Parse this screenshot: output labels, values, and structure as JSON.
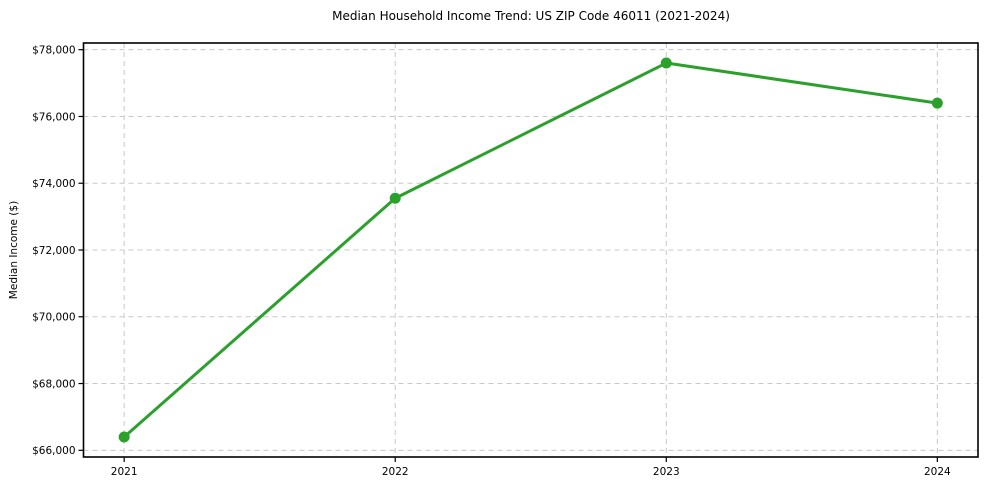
{
  "chart_data": {
    "type": "line",
    "title": "Median Household Income Trend: US ZIP Code 46011 (2021-2024)",
    "xlabel": "",
    "ylabel": "Median Income ($)",
    "x": [
      2021,
      2022,
      2023,
      2024
    ],
    "categories": [
      "2021",
      "2022",
      "2023",
      "2024"
    ],
    "series": [
      {
        "name": "Median Household Income",
        "values": [
          66400,
          73550,
          77600,
          76400
        ]
      }
    ],
    "xticks": [
      2021,
      2022,
      2023,
      2024
    ],
    "xtick_labels": [
      "2021",
      "2022",
      "2023",
      "2024"
    ],
    "yticks": [
      66000,
      68000,
      70000,
      72000,
      74000,
      76000,
      78000
    ],
    "ytick_labels": [
      "$66,000",
      "$68,000",
      "$70,000",
      "$72,000",
      "$74,000",
      "$76,000",
      "$78,000"
    ],
    "xlim": [
      2020.85,
      2024.15
    ],
    "ylim": [
      65800,
      78200
    ],
    "grid": true,
    "legend": "none",
    "line_color": "#2ca02c",
    "marker_color": "#2ca02c",
    "grid_color": "#c8c8c8",
    "axis_color": "#000000",
    "text_color": "#000000",
    "background_color": "#ffffff"
  }
}
